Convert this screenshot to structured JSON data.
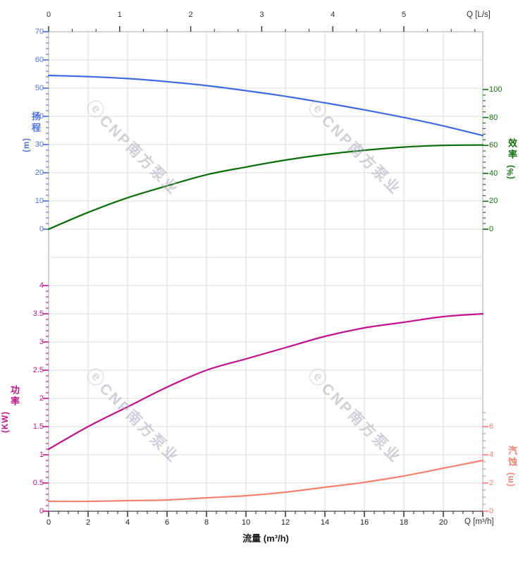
{
  "watermark": {
    "logo": "ⓔ",
    "text": "CNP南方泵业"
  },
  "colors": {
    "head": "#4169e1",
    "head_label": "#4f74e3",
    "efficiency": "#0a6e0a",
    "efficiency_label": "#11700f",
    "power": "#c2128e",
    "power_label": "#c2128e",
    "npsh": "#f58170",
    "npsh_label": "#f87f6e",
    "grid": "#dcdcdc",
    "spine": "#a8a8a8",
    "bottom_spine": "#444444",
    "dark_text": "#333333"
  },
  "axes": {
    "top": {
      "end_label": "Q [L/s]",
      "tick_labels": [
        "0",
        "1",
        "2",
        "3",
        "4",
        "5"
      ]
    },
    "bottom": {
      "end_label": "Q [m³/h]",
      "title": "流量 (m³/h)",
      "tick_labels": [
        "0",
        "2",
        "4",
        "6",
        "8",
        "10",
        "12",
        "14",
        "16",
        "18",
        "20"
      ]
    },
    "head": {
      "name": "扬程",
      "unit": "(m)",
      "tick_labels": [
        "70",
        "60",
        "50",
        "40",
        "30",
        "20",
        "10",
        "0"
      ]
    },
    "efficiency": {
      "name": "效率",
      "unit": "(%)",
      "tick_labels": [
        "100",
        "80",
        "60",
        "40",
        "20",
        "0"
      ]
    },
    "power": {
      "name": "功率",
      "unit": "(KW)",
      "tick_labels": [
        "4",
        "3.5",
        "3",
        "2.5",
        "2",
        "1.5",
        "1",
        "0.5",
        "0"
      ]
    },
    "npsh": {
      "name": "汽蚀",
      "unit": "(m)",
      "tick_labels": [
        "6",
        "4",
        "2",
        "0"
      ]
    }
  },
  "chart_data": {
    "type": "line",
    "title": "",
    "xlabel": "流量 (m³/h)",
    "x_secondary_label": "Q [L/s]",
    "x_m3h": [
      0,
      2,
      4,
      6,
      8,
      10,
      12,
      14,
      16,
      18,
      20,
      22
    ],
    "axis_ranges": {
      "x_m3h": [
        0,
        22
      ],
      "x_ls": [
        0,
        6.1
      ],
      "head_m": [
        0,
        70
      ],
      "efficiency_pct": [
        0,
        100
      ],
      "power_kw": [
        0,
        4
      ],
      "npsh_m": [
        0,
        8
      ]
    },
    "grid": "on",
    "legend": "none",
    "series": [
      {
        "name": "扬程 (Head)",
        "axis": "head",
        "unit": "m",
        "color": "#4169e1",
        "values": [
          54.5,
          54.1,
          53.4,
          52.3,
          50.9,
          49.1,
          47.1,
          44.8,
          42.3,
          39.6,
          36.6,
          33.2
        ]
      },
      {
        "name": "效率 (Efficiency)",
        "axis": "efficiency",
        "unit": "%",
        "color": "#0a6e0a",
        "values": [
          0,
          12,
          22.5,
          31,
          39,
          44.5,
          49.5,
          53.5,
          56.5,
          58.8,
          60,
          60.3
        ]
      },
      {
        "name": "功率 (Power)",
        "axis": "power",
        "unit": "KW",
        "color": "#c2128e",
        "values": [
          1.1,
          1.5,
          1.85,
          2.2,
          2.5,
          2.7,
          2.9,
          3.1,
          3.25,
          3.35,
          3.45,
          3.5
        ]
      },
      {
        "name": "汽蚀 (NPSH)",
        "axis": "npsh",
        "unit": "m",
        "color": "#f58170",
        "values": [
          0.7,
          0.7,
          0.75,
          0.8,
          0.95,
          1.1,
          1.35,
          1.7,
          2.05,
          2.5,
          3.05,
          3.6
        ]
      }
    ]
  }
}
